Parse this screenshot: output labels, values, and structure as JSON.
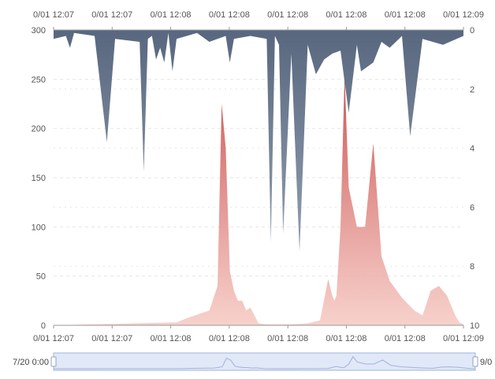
{
  "chart_data": {
    "type": "area",
    "x_ticks_top": [
      "0/01 12:07",
      "0/01 12:07",
      "0/01 12:08",
      "0/01 12:08",
      "0/01 12:08",
      "0/01 12:08",
      "0/01 12:08",
      "0/01 12:09"
    ],
    "x_ticks_bottom": [
      "0/01 12:07",
      "0/01 12:07",
      "0/01 12:08",
      "0/01 12:08",
      "0/01 12:08",
      "0/01 12:08",
      "0/01 12:08",
      "0/01 12:09"
    ],
    "y_left": {
      "ticks": [
        "0",
        "50",
        "100",
        "150",
        "200",
        "250",
        "300"
      ],
      "ylim": [
        0,
        300
      ]
    },
    "y_right": {
      "ticks": [
        "0",
        "2",
        "4",
        "6",
        "8",
        "10"
      ],
      "ylim": [
        0,
        10
      ],
      "inverted": true
    },
    "grid": true,
    "series": [
      {
        "axis": "left",
        "color": "#d9534f",
        "x": [
          0,
          10,
          20,
          30,
          33,
          38,
          40,
          41,
          42,
          43,
          44,
          45,
          46,
          47,
          48,
          50,
          52,
          55,
          58,
          62,
          65,
          67,
          68,
          68.5,
          69,
          70,
          71,
          72,
          73,
          74,
          76,
          78,
          80,
          82,
          85,
          88,
          90,
          92,
          94,
          96,
          97,
          98,
          99,
          100
        ],
        "values": [
          0,
          1,
          2,
          3,
          8,
          15,
          40,
          225,
          180,
          55,
          35,
          25,
          25,
          15,
          18,
          2,
          1,
          1,
          1,
          2,
          5,
          47,
          30,
          25,
          30,
          100,
          255,
          140,
          120,
          100,
          100,
          185,
          70,
          45,
          28,
          15,
          10,
          35,
          40,
          30,
          20,
          10,
          3,
          1
        ]
      },
      {
        "axis": "right",
        "color": "#5b6b82",
        "x": [
          0,
          3,
          4,
          5,
          10,
          13,
          15,
          21,
          22,
          23,
          24,
          25,
          26,
          27,
          28,
          29,
          30,
          35,
          38,
          42,
          43,
          44,
          48,
          52,
          53,
          54,
          55,
          56,
          58,
          60,
          62,
          64,
          66,
          68,
          70,
          72,
          74,
          75,
          78,
          80,
          82,
          85,
          87,
          90,
          95,
          100
        ],
        "values": [
          0.3,
          0.2,
          0.6,
          0.1,
          0.2,
          3.8,
          0.3,
          0.4,
          4.8,
          0.3,
          0.2,
          1.0,
          0.6,
          1.1,
          0.1,
          1.4,
          0.3,
          0.1,
          0.4,
          0.2,
          1.1,
          0.3,
          0.2,
          0.3,
          7.2,
          0.2,
          0.5,
          6.9,
          0.8,
          7.5,
          0.5,
          1.5,
          1.0,
          0.8,
          0.7,
          2.8,
          0.5,
          1.4,
          1.1,
          0.4,
          0.6,
          0.2,
          3.6,
          0.3,
          0.5,
          0.2
        ]
      }
    ]
  },
  "zoom": {
    "start_label": "7/20 0:00",
    "end_label": "9/0"
  },
  "colors": {
    "grid": "#e6e6e6",
    "axis": "#999999",
    "zoom_fill": "#e1e8f7",
    "zoom_border": "#9fb4df"
  }
}
